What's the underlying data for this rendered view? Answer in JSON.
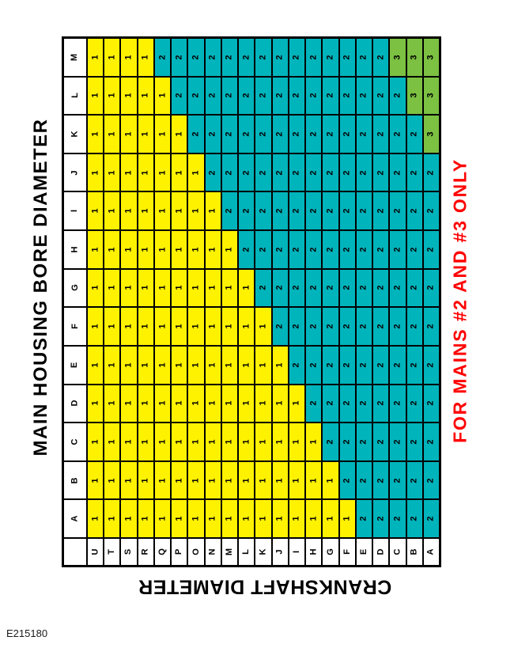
{
  "labels": {
    "row_axis": "MAIN HOUSING BORE DIAMETER",
    "col_axis": "CRANKSHAFT DIAMETER",
    "note": "FOR MAINS #2 AND #3 ONLY",
    "figure_id": "E215180"
  },
  "colors": {
    "note_red": "#FF0000",
    "grade_1_yellow": "#FFF200",
    "grade_2_teal": "#00B4BC",
    "grade_3_green": "#7CC142",
    "grid_line": "#000000"
  },
  "chart_data": {
    "type": "heatmap",
    "title": "MAIN HOUSING BORE DIAMETER",
    "row_axis_label": "MAIN HOUSING BORE DIAMETER",
    "col_axis_label": "CRANKSHAFT DIAMETER",
    "annotation": "FOR MAINS #2 AND #3 ONLY",
    "figure_id": "E215180",
    "rows": [
      "M",
      "L",
      "K",
      "J",
      "I",
      "H",
      "G",
      "F",
      "E",
      "D",
      "C",
      "B",
      "A"
    ],
    "columns": [
      "U",
      "T",
      "S",
      "R",
      "Q",
      "P",
      "O",
      "N",
      "M",
      "L",
      "K",
      "J",
      "I",
      "H",
      "G",
      "F",
      "E",
      "D",
      "C",
      "B",
      "A"
    ],
    "values": [
      [
        1,
        1,
        1,
        1,
        2,
        2,
        2,
        2,
        2,
        2,
        2,
        2,
        2,
        2,
        2,
        2,
        2,
        2,
        3,
        3,
        3
      ],
      [
        1,
        1,
        1,
        1,
        1,
        2,
        2,
        2,
        2,
        2,
        2,
        2,
        2,
        2,
        2,
        2,
        2,
        2,
        2,
        3,
        3
      ],
      [
        1,
        1,
        1,
        1,
        1,
        1,
        2,
        2,
        2,
        2,
        2,
        2,
        2,
        2,
        2,
        2,
        2,
        2,
        2,
        2,
        3
      ],
      [
        1,
        1,
        1,
        1,
        1,
        1,
        1,
        2,
        2,
        2,
        2,
        2,
        2,
        2,
        2,
        2,
        2,
        2,
        2,
        2,
        2
      ],
      [
        1,
        1,
        1,
        1,
        1,
        1,
        1,
        1,
        2,
        2,
        2,
        2,
        2,
        2,
        2,
        2,
        2,
        2,
        2,
        2,
        2
      ],
      [
        1,
        1,
        1,
        1,
        1,
        1,
        1,
        1,
        1,
        2,
        2,
        2,
        2,
        2,
        2,
        2,
        2,
        2,
        2,
        2,
        2
      ],
      [
        1,
        1,
        1,
        1,
        1,
        1,
        1,
        1,
        1,
        1,
        2,
        2,
        2,
        2,
        2,
        2,
        2,
        2,
        2,
        2,
        2
      ],
      [
        1,
        1,
        1,
        1,
        1,
        1,
        1,
        1,
        1,
        1,
        1,
        2,
        2,
        2,
        2,
        2,
        2,
        2,
        2,
        2,
        2
      ],
      [
        1,
        1,
        1,
        1,
        1,
        1,
        1,
        1,
        1,
        1,
        1,
        1,
        2,
        2,
        2,
        2,
        2,
        2,
        2,
        2,
        2
      ],
      [
        1,
        1,
        1,
        1,
        1,
        1,
        1,
        1,
        1,
        1,
        1,
        1,
        1,
        2,
        2,
        2,
        2,
        2,
        2,
        2,
        2
      ],
      [
        1,
        1,
        1,
        1,
        1,
        1,
        1,
        1,
        1,
        1,
        1,
        1,
        1,
        1,
        2,
        2,
        2,
        2,
        2,
        2,
        2
      ],
      [
        1,
        1,
        1,
        1,
        1,
        1,
        1,
        1,
        1,
        1,
        1,
        1,
        1,
        1,
        1,
        2,
        2,
        2,
        2,
        2,
        2
      ],
      [
        1,
        1,
        1,
        1,
        1,
        1,
        1,
        1,
        1,
        1,
        1,
        1,
        1,
        1,
        1,
        1,
        2,
        2,
        2,
        2,
        2
      ]
    ],
    "value_colors": {
      "1": "#FFF200",
      "2": "#00B4BC",
      "3": "#7CC142"
    },
    "legend_position": "none",
    "grid": true
  }
}
